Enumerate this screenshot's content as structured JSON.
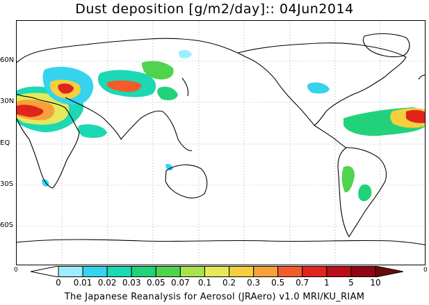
{
  "title": "Dust deposition [g/m2/day]:: 04Jun2014",
  "lat_labels": [
    "60N",
    "30N",
    "EQ",
    "30S",
    "60S"
  ],
  "colorbar": {
    "labels": [
      "0",
      "0.01",
      "0.02",
      "0.03",
      "0.05",
      "0.07",
      "0.1",
      "0.2",
      "0.3",
      "0.5",
      "0.7",
      "1",
      "5",
      "10"
    ],
    "colors": [
      "#ffffff",
      "#9ceeff",
      "#35d3ee",
      "#1cd8b4",
      "#22d27a",
      "#4ed44d",
      "#a7e34a",
      "#e4e95a",
      "#f5cf3c",
      "#f7a13b",
      "#f25c2a",
      "#e2241c",
      "#bb0f18",
      "#8f0612",
      "#6b0a0a"
    ],
    "left_edge": "0",
    "right_edge": "0"
  },
  "footer": "The Japanese Reanalysis for Aerosol (JRAero) v1.0 MRI/KU_RIAM"
}
